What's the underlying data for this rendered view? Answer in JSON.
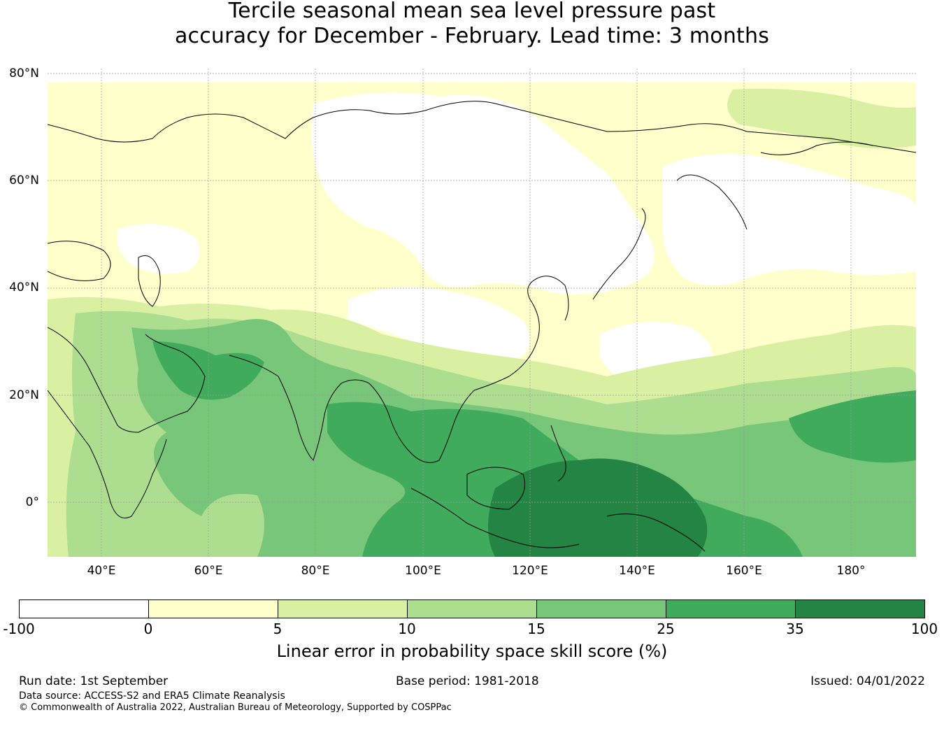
{
  "title": {
    "line1": "Tercile seasonal mean sea level pressure past",
    "line2": "accuracy for December - February. Lead time: 3 months"
  },
  "map": {
    "lat_labels": [
      "80°N",
      "60°N",
      "40°N",
      "20°N",
      "0°"
    ],
    "lon_labels": [
      "40°E",
      "60°E",
      "80°E",
      "100°E",
      "120°E",
      "140°E",
      "160°E",
      "180°"
    ],
    "gridlines": true,
    "land_outline_color": "#000000",
    "gridline_color": "#9a9a9a"
  },
  "colorbar": {
    "bins": [
      {
        "from": -100,
        "to": 0,
        "color": "#ffffff"
      },
      {
        "from": 0,
        "to": 5,
        "color": "#ffffcc"
      },
      {
        "from": 5,
        "to": 10,
        "color": "#d9f0a3"
      },
      {
        "from": 10,
        "to": 15,
        "color": "#addd8e"
      },
      {
        "from": 15,
        "to": 25,
        "color": "#78c679"
      },
      {
        "from": 25,
        "to": 35,
        "color": "#41ab5d"
      },
      {
        "from": 35,
        "to": 100,
        "color": "#238443"
      }
    ],
    "ticks": [
      "-100",
      "0",
      "5",
      "10",
      "15",
      "25",
      "35",
      "100"
    ],
    "label": "Linear error in probability space skill score (%)"
  },
  "footer": {
    "run_date": "Run date: 1st September",
    "base_period": "Base period: 1981-2018",
    "issued": "Issued: 04/01/2022",
    "data_source": "Data source: ACCESS-S2 and ERA5 Climate Reanalysis",
    "copyright": "© Commonwealth of Australia 2022, Australian Bureau of Meteorology, Supported by COSPPac"
  }
}
